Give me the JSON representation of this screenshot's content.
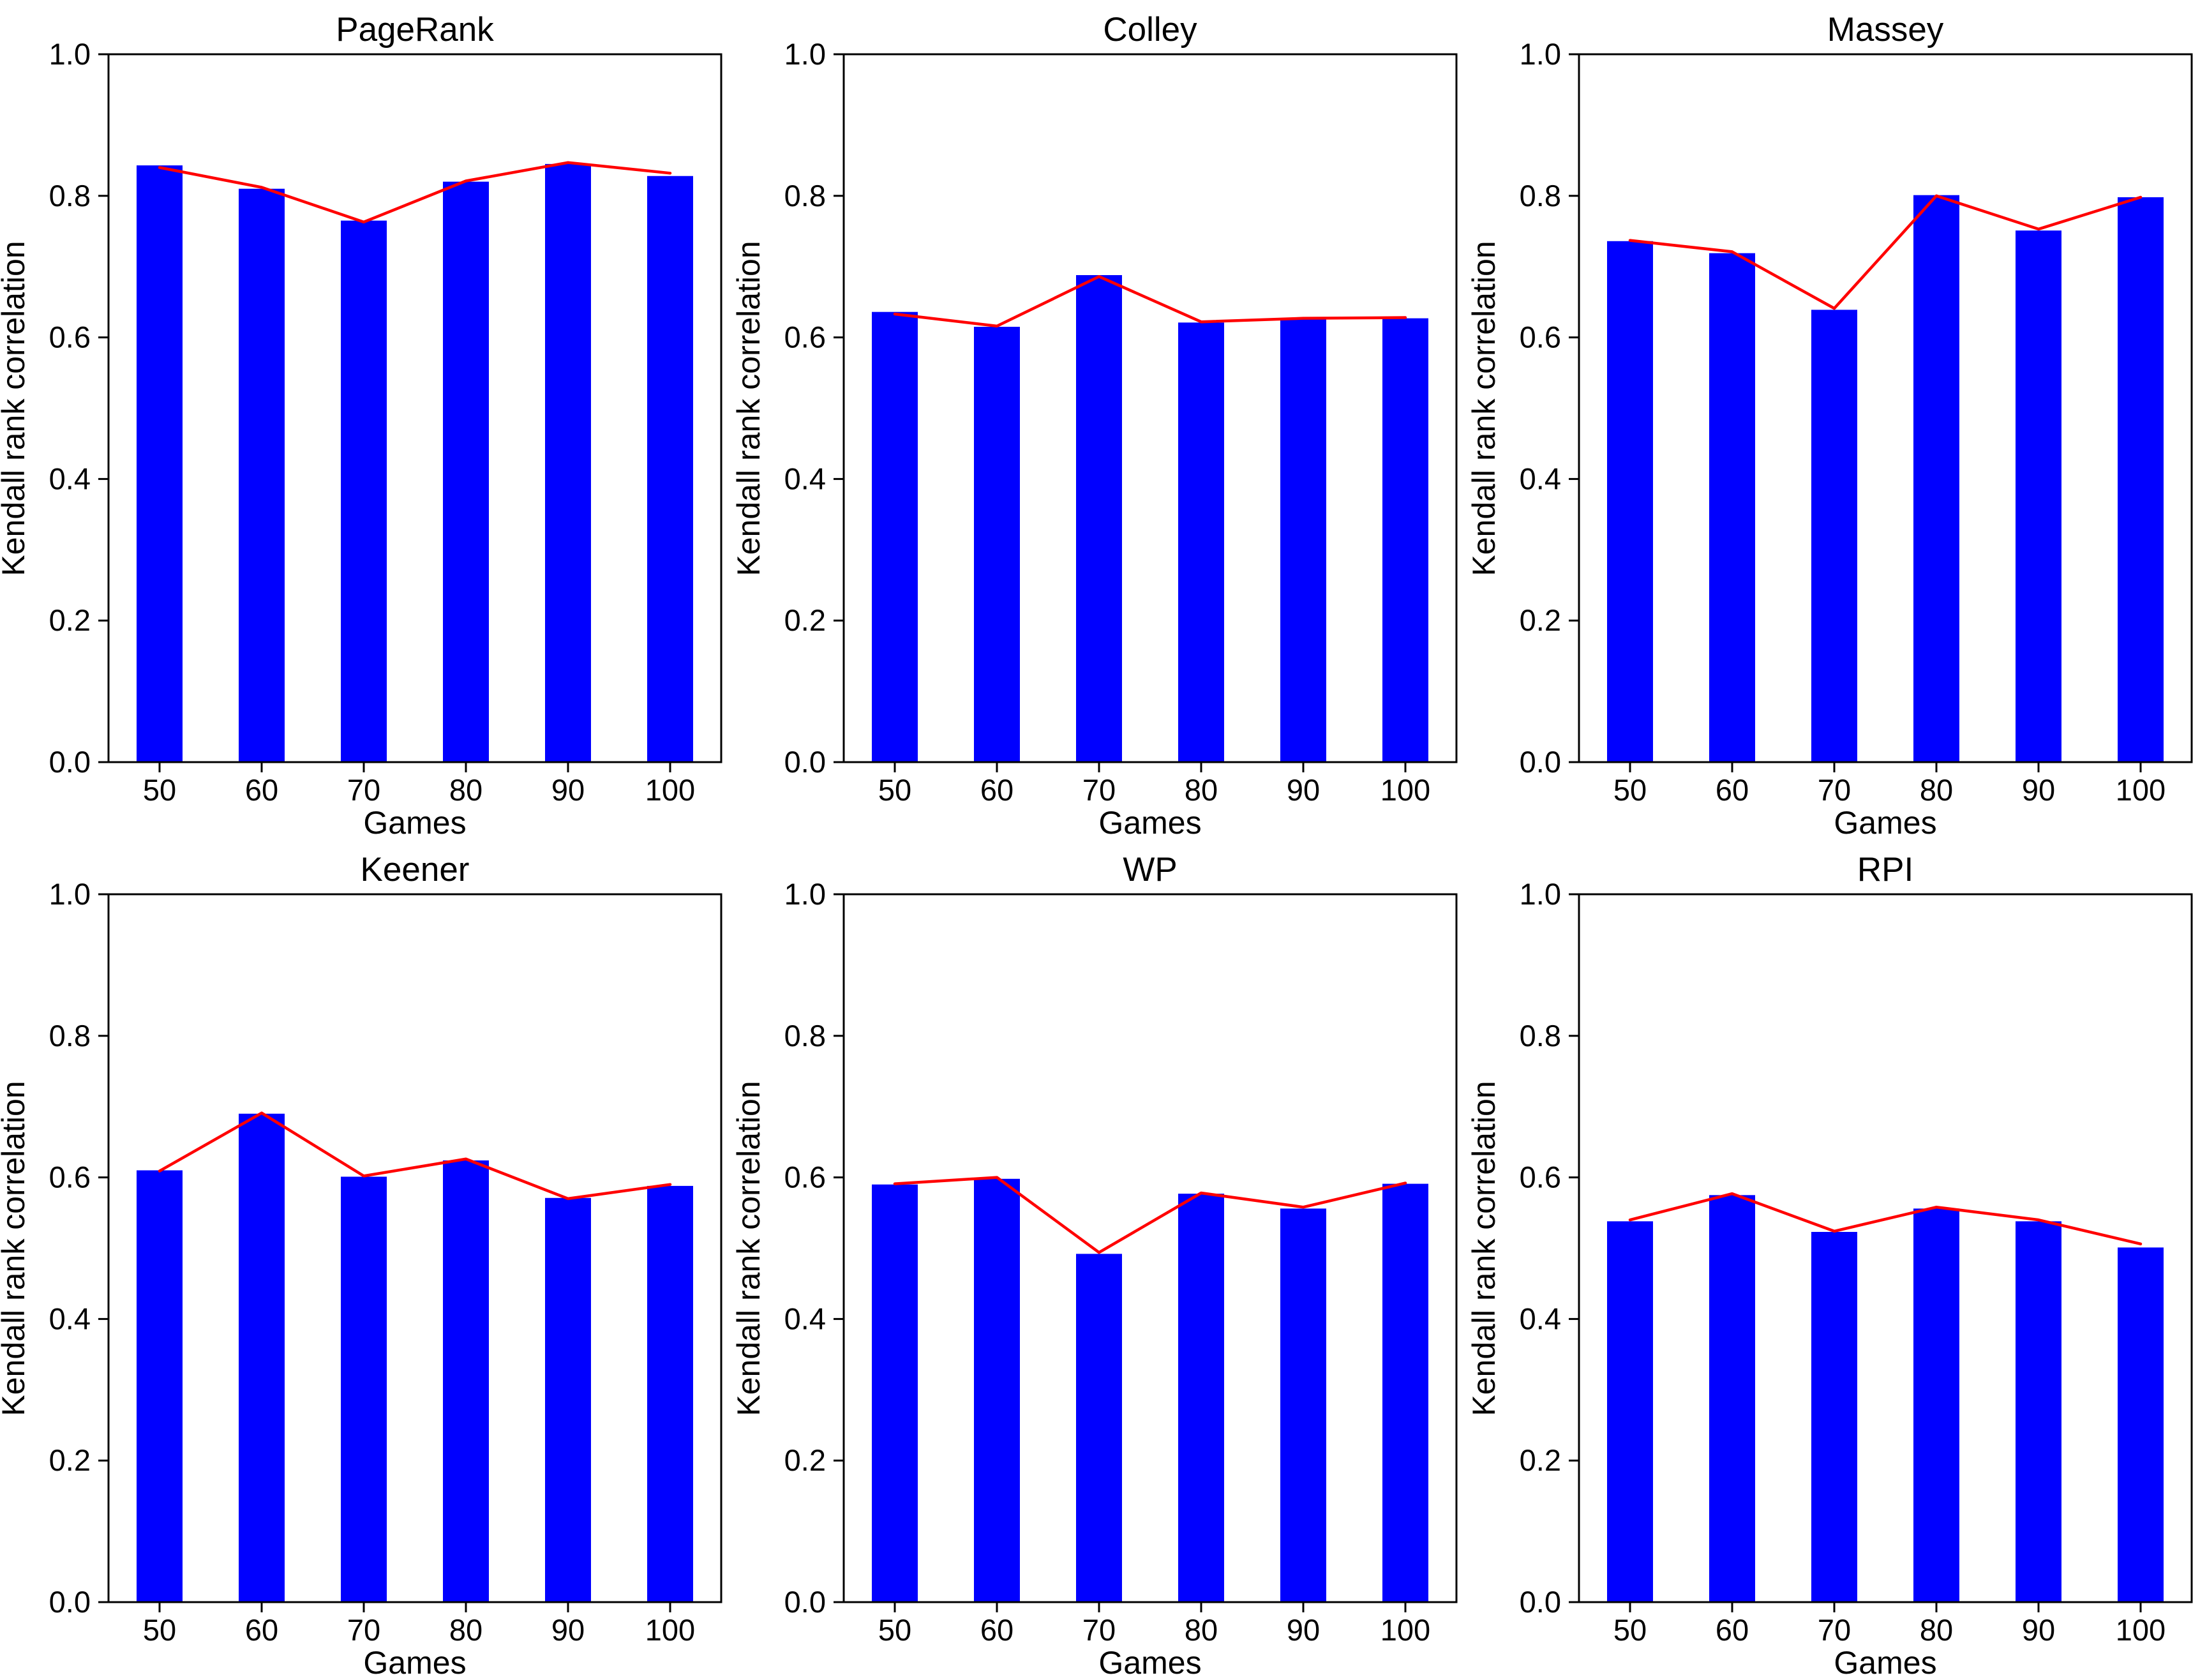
{
  "figure": {
    "background": "#ffffff",
    "bar_color": "#0000ff",
    "line_color": "#ff0000",
    "spine_color": "#000000"
  },
  "chart_data": [
    {
      "type": "bar",
      "title": "PageRank",
      "xlabel": "Games",
      "ylabel": "Kendall rank correlation",
      "categories": [
        50,
        60,
        70,
        80,
        90,
        100
      ],
      "ylim": [
        0.0,
        1.0
      ],
      "yticks": [
        0.0,
        0.2,
        0.4,
        0.6,
        0.8,
        1.0
      ],
      "grid": false,
      "legend": "none",
      "series": [
        {
          "name": "Kendall rank correlation",
          "type": "bar",
          "color": "#0000ff",
          "values": [
            0.843,
            0.81,
            0.765,
            0.82,
            0.845,
            0.828
          ]
        },
        {
          "name": "trend",
          "type": "line",
          "color": "#ff0000",
          "values": [
            0.84,
            0.812,
            0.763,
            0.821,
            0.847,
            0.832
          ]
        }
      ]
    },
    {
      "type": "bar",
      "title": "Colley",
      "xlabel": "Games",
      "ylabel": "Kendall rank correlation",
      "categories": [
        50,
        60,
        70,
        80,
        90,
        100
      ],
      "ylim": [
        0.0,
        1.0
      ],
      "yticks": [
        0.0,
        0.2,
        0.4,
        0.6,
        0.8,
        1.0
      ],
      "grid": false,
      "legend": "none",
      "series": [
        {
          "name": "Kendall rank correlation",
          "type": "bar",
          "color": "#0000ff",
          "values": [
            0.636,
            0.615,
            0.688,
            0.621,
            0.626,
            0.627
          ]
        },
        {
          "name": "trend",
          "type": "line",
          "color": "#ff0000",
          "values": [
            0.633,
            0.616,
            0.686,
            0.622,
            0.627,
            0.628
          ]
        }
      ]
    },
    {
      "type": "bar",
      "title": "Massey",
      "xlabel": "Games",
      "ylabel": "Kendall rank correlation",
      "categories": [
        50,
        60,
        70,
        80,
        90,
        100
      ],
      "ylim": [
        0.0,
        1.0
      ],
      "yticks": [
        0.0,
        0.2,
        0.4,
        0.6,
        0.8,
        1.0
      ],
      "grid": false,
      "legend": "none",
      "series": [
        {
          "name": "Kendall rank correlation",
          "type": "bar",
          "color": "#0000ff",
          "values": [
            0.736,
            0.719,
            0.639,
            0.801,
            0.751,
            0.798
          ]
        },
        {
          "name": "trend",
          "type": "line",
          "color": "#ff0000",
          "values": [
            0.737,
            0.721,
            0.641,
            0.8,
            0.753,
            0.798
          ]
        }
      ]
    },
    {
      "type": "bar",
      "title": "Keener",
      "xlabel": "Games",
      "ylabel": "Kendall rank correlation",
      "categories": [
        50,
        60,
        70,
        80,
        90,
        100
      ],
      "ylim": [
        0.0,
        1.0
      ],
      "yticks": [
        0.0,
        0.2,
        0.4,
        0.6,
        0.8,
        1.0
      ],
      "grid": false,
      "legend": "none",
      "series": [
        {
          "name": "Kendall rank correlation",
          "type": "bar",
          "color": "#0000ff",
          "values": [
            0.61,
            0.69,
            0.601,
            0.624,
            0.571,
            0.588
          ]
        },
        {
          "name": "trend",
          "type": "line",
          "color": "#ff0000",
          "values": [
            0.609,
            0.691,
            0.602,
            0.626,
            0.57,
            0.59
          ]
        }
      ]
    },
    {
      "type": "bar",
      "title": "WP",
      "xlabel": "Games",
      "ylabel": "Kendall rank correlation",
      "categories": [
        50,
        60,
        70,
        80,
        90,
        100
      ],
      "ylim": [
        0.0,
        1.0
      ],
      "yticks": [
        0.0,
        0.2,
        0.4,
        0.6,
        0.8,
        1.0
      ],
      "grid": false,
      "legend": "none",
      "series": [
        {
          "name": "Kendall rank correlation",
          "type": "bar",
          "color": "#0000ff",
          "values": [
            0.59,
            0.598,
            0.492,
            0.577,
            0.556,
            0.591
          ]
        },
        {
          "name": "trend",
          "type": "line",
          "color": "#ff0000",
          "values": [
            0.591,
            0.6,
            0.494,
            0.578,
            0.558,
            0.592
          ]
        }
      ]
    },
    {
      "type": "bar",
      "title": "RPI",
      "xlabel": "Games",
      "ylabel": "Kendall rank correlation",
      "categories": [
        50,
        60,
        70,
        80,
        90,
        100
      ],
      "ylim": [
        0.0,
        1.0
      ],
      "yticks": [
        0.0,
        0.2,
        0.4,
        0.6,
        0.8,
        1.0
      ],
      "grid": false,
      "legend": "none",
      "series": [
        {
          "name": "Kendall rank correlation",
          "type": "bar",
          "color": "#0000ff",
          "values": [
            0.538,
            0.575,
            0.523,
            0.556,
            0.538,
            0.501
          ]
        },
        {
          "name": "trend",
          "type": "line",
          "color": "#ff0000",
          "values": [
            0.54,
            0.577,
            0.524,
            0.558,
            0.54,
            0.506
          ]
        }
      ]
    }
  ]
}
